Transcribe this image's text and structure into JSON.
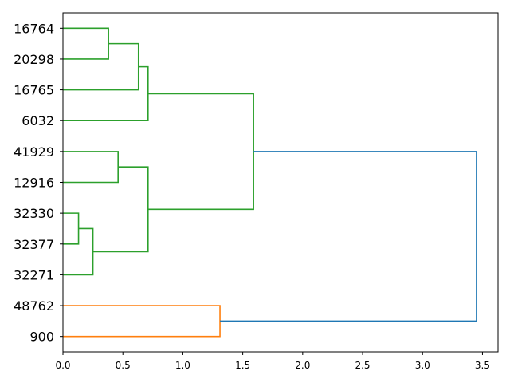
{
  "chart_data": {
    "type": "dendrogram",
    "orientation": "horizontal",
    "title": "",
    "xlabel": "",
    "ylabel": "",
    "xlim": [
      0,
      3.63
    ],
    "x_ticks": [
      "0.0",
      "0.5",
      "1.0",
      "1.5",
      "2.0",
      "2.5",
      "3.0",
      "3.5"
    ],
    "leaves": [
      "16764",
      "20298",
      "16765",
      "6032",
      "41929",
      "12916",
      "32330",
      "32377",
      "32271",
      "48762",
      "900"
    ],
    "colors": {
      "cluster_1": "#2ca02c",
      "cluster_2": "#ff7f0e",
      "above_threshold": "#1f77b4"
    },
    "merges": [
      {
        "a": "16764",
        "b": "20298",
        "height": 0.38,
        "color": "cluster_1"
      },
      {
        "a": "m0",
        "b": "16765",
        "height": 0.63,
        "color": "cluster_1"
      },
      {
        "a": "m1",
        "b": "6032",
        "height": 0.71,
        "color": "cluster_1"
      },
      {
        "a": "41929",
        "b": "12916",
        "height": 0.46,
        "color": "cluster_1"
      },
      {
        "a": "32330",
        "b": "32377",
        "height": 0.13,
        "color": "cluster_1"
      },
      {
        "a": "m4",
        "b": "32271",
        "height": 0.25,
        "color": "cluster_1"
      },
      {
        "a": "m3",
        "b": "m5",
        "height": 0.71,
        "color": "cluster_1"
      },
      {
        "a": "m2",
        "b": "m6",
        "height": 1.59,
        "color": "cluster_1"
      },
      {
        "a": "48762",
        "b": "900",
        "height": 1.31,
        "color": "cluster_2"
      },
      {
        "a": "m7",
        "b": "m8",
        "height": 3.45,
        "color": "above_threshold"
      }
    ]
  }
}
